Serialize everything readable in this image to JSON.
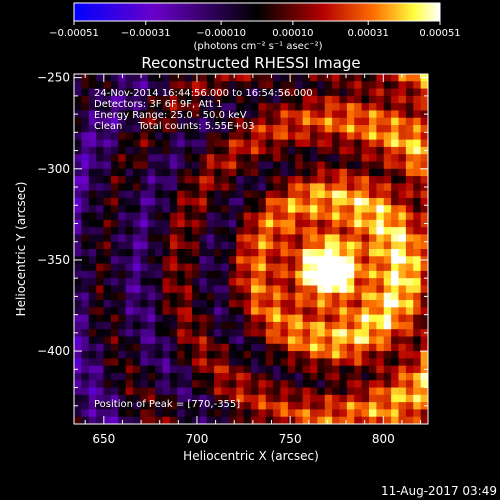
{
  "chart_data": {
    "type": "heatmap",
    "title": "Reconstructed RHESSI Image",
    "xlabel": "Heliocentric X (arcsec)",
    "ylabel": "Heliocentric Y (arcsec)",
    "xlim": [
      634,
      824
    ],
    "ylim": [
      -440,
      -248
    ],
    "x_ticks": [
      650,
      700,
      750,
      800
    ],
    "x_tick_labels": [
      "650",
      "700",
      "750",
      "800"
    ],
    "y_ticks": [
      -250,
      -300,
      -350,
      -400
    ],
    "y_tick_labels": [
      "−250",
      "−300",
      "−350",
      "−400"
    ],
    "colorbar": {
      "ticks": [
        -0.00051,
        -0.00031,
        -0.0001,
        0.0001,
        0.00031,
        0.00051
      ],
      "tick_labels": [
        "−0.00051",
        "−0.00031",
        "−0.00010",
        "0.00010",
        "0.00031",
        "0.00051"
      ],
      "unit_label": "(photons cm⁻² s⁻¹ asec⁻²)",
      "min": -0.00051,
      "max": 0.00051
    },
    "annotations": [
      "24-Nov-2014 16:44:56.000 to 16:54:56.000",
      "Detectors: 3F 6F 9F, Att 1",
      "Energy Range: 25.0 - 50.0 keV",
      "Clean     Total counts: 5.55E+03"
    ],
    "peak_label": "Position of Peak = [770,-355]",
    "peak": [
      770,
      -355
    ],
    "timestamp": "11-Aug-2017 03:49",
    "colors": {
      "background": "#000000",
      "text": "#ffffff",
      "colormap": [
        "#0000ff",
        "#6a00c8",
        "#000000",
        "#b40000",
        "#ff7000",
        "#ffff40",
        "#ffffff"
      ]
    }
  }
}
